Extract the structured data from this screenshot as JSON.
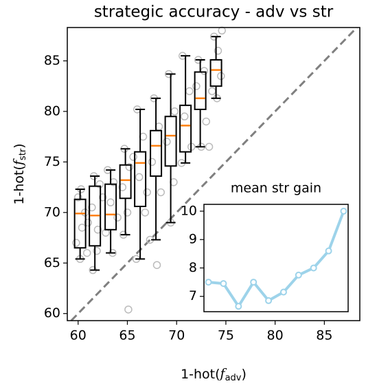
{
  "chart_data": [
    {
      "type": "box",
      "title": "strategic accuracy - adv vs str",
      "xlabel": [
        "1-hot(",
        "f",
        "adv",
        ")"
      ],
      "ylabel": [
        "1-hot(",
        "f",
        "str",
        ")"
      ],
      "xlim": [
        58.9,
        88.6
      ],
      "ylim": [
        59.3,
        88.3
      ],
      "xticks": [
        60,
        65,
        70,
        75,
        80,
        85
      ],
      "yticks": [
        60,
        65,
        70,
        75,
        80,
        85
      ],
      "diagonal": true,
      "box_color": "#000000",
      "median_color": "#ff7f0e",
      "point_color": "#bbbbbb",
      "diagonal_color": "#808080",
      "boxes": {
        "x": [
          60.2,
          61.7,
          63.3,
          64.8,
          66.3,
          67.9,
          69.4,
          70.9,
          72.4,
          74.0
        ],
        "whislo": [
          65.4,
          64.3,
          66.0,
          67.8,
          65.4,
          67.3,
          69.0,
          74.9,
          76.5,
          81.3
        ],
        "q1": [
          66.5,
          66.7,
          68.3,
          71.4,
          70.6,
          73.6,
          74.6,
          76.0,
          80.2,
          82.5
        ],
        "med": [
          69.9,
          69.7,
          69.8,
          73.2,
          74.9,
          76.6,
          77.6,
          78.6,
          81.3,
          84.1
        ],
        "q3": [
          71.3,
          72.6,
          72.8,
          74.7,
          76.0,
          78.1,
          79.5,
          80.6,
          83.9,
          85.1
        ],
        "whishi": [
          72.3,
          73.6,
          74.2,
          76.3,
          80.2,
          81.3,
          83.7,
          85.5,
          85.1,
          87.4
        ]
      },
      "points": {
        "x": [
          60.3,
          60.0,
          60.7,
          60.4,
          59.8,
          60.9,
          60.2,
          61.0,
          61.6,
          62.2,
          61.4,
          62.0,
          61.9,
          61.5,
          62.5,
          63.0,
          63.6,
          63.3,
          62.8,
          63.5,
          64.0,
          64.7,
          65.2,
          64.5,
          65.0,
          64.6,
          65.1,
          65.6,
          66.0,
          66.6,
          66.2,
          66.8,
          65.9,
          67.0,
          67.7,
          68.2,
          67.5,
          68.4,
          68.0,
          67.3,
          69.2,
          69.8,
          69.0,
          69.7,
          69.4,
          70.6,
          71.3,
          70.8,
          71.5,
          70.5,
          72.2,
          72.8,
          72.0,
          73.0,
          72.5,
          73.8,
          74.2,
          74.5,
          73.6,
          74.1,
          74.6,
          73.3
        ],
        "y": [
          72.3,
          71.5,
          70.0,
          68.5,
          67.0,
          66.0,
          65.4,
          69.0,
          73.6,
          72.8,
          70.5,
          68.3,
          66.2,
          64.3,
          71.5,
          74.2,
          73.0,
          71.0,
          68.0,
          66.0,
          69.5,
          76.3,
          74.5,
          72.5,
          70.0,
          67.8,
          60.4,
          75.5,
          80.2,
          77.5,
          73.5,
          70.0,
          65.4,
          72.0,
          81.3,
          78.5,
          75.0,
          72.0,
          64.8,
          67.3,
          83.7,
          80.0,
          77.0,
          73.0,
          69.0,
          85.5,
          82.0,
          79.5,
          76.5,
          74.9,
          85.1,
          84.0,
          82.5,
          79.0,
          76.5,
          87.4,
          86.0,
          83.5,
          82.0,
          81.3,
          88.0,
          76.5
        ]
      }
    },
    {
      "type": "line",
      "title": "mean str gain",
      "color": "#9dd3ea",
      "x": [
        0,
        1,
        2,
        3,
        4,
        5,
        6,
        7,
        8,
        9
      ],
      "values": [
        7.5,
        7.45,
        6.65,
        7.5,
        6.85,
        7.15,
        7.75,
        8.0,
        8.6,
        10.0
      ],
      "xlim": [
        -0.3,
        9.3
      ],
      "ylim": [
        6.46,
        10.24
      ],
      "yticks": [
        7,
        8,
        9,
        10
      ]
    }
  ]
}
